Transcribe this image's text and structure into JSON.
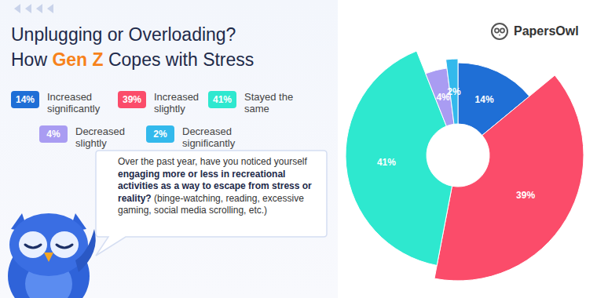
{
  "chart_data": {
    "type": "pie",
    "title": [
      "Unplugging or Overloading?",
      "How Gen Z Copes with Stress"
    ],
    "highlight": "Gen Z",
    "brand": "PapersOwl",
    "question": [
      "Over the past year, have you noticed yourself",
      "engaging more or less in recreational activities as a way to escape from stress or reality?",
      "(binge-watching, reading, excessive gaming, social media scrolling, etc.)"
    ],
    "categories": [
      "Increased significantly",
      "Increased slightly",
      "Stayed the same",
      "Decreased slightly",
      "Decreased significantly"
    ],
    "values": [
      14,
      39,
      41,
      4,
      2
    ],
    "value_labels": [
      "14%",
      "39%",
      "41%",
      "4%",
      "2%"
    ],
    "colors": [
      "#1f6fd6",
      "#fb4c6a",
      "#2ee8cf",
      "#a99cf2",
      "#33b9ec"
    ],
    "data_labels": true,
    "legend": "top left"
  }
}
